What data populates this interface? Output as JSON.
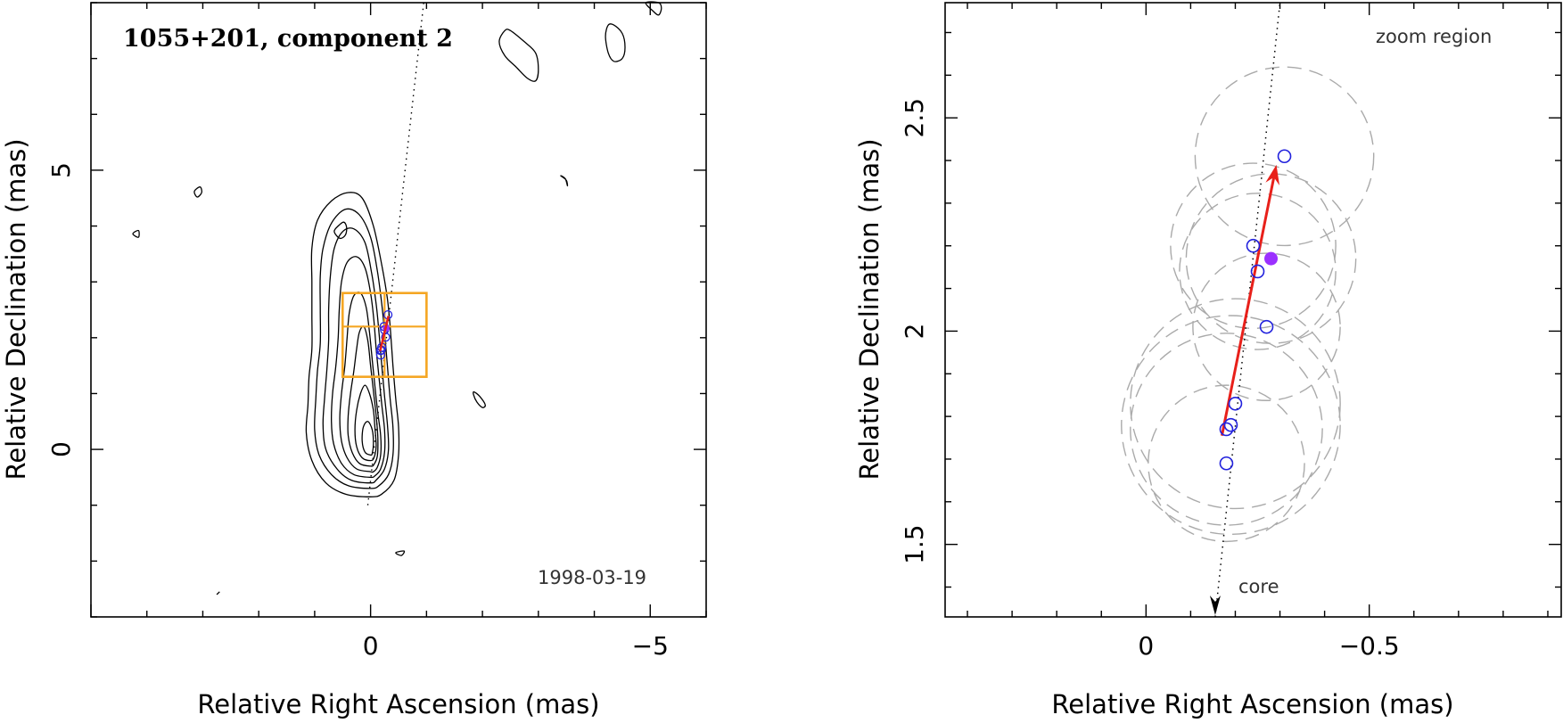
{
  "chart_data": [
    {
      "type": "scatter",
      "title": "1055+201, component 2",
      "annotation": "1998-03-19",
      "xlabel": "Relative Right Ascension (mas)",
      "ylabel": "Relative Declination (mas)",
      "xlim": [
        5,
        -6
      ],
      "ylim": [
        -3,
        8
      ],
      "x_ticks": [
        {
          "value": 0,
          "label": "0"
        },
        {
          "value": -5,
          "label": "−5"
        }
      ],
      "y_ticks": [
        {
          "value": 0,
          "label": "0"
        },
        {
          "value": 5,
          "label": "5"
        }
      ],
      "grid": false,
      "colors": {
        "contour": "#000000",
        "box": "#f5a623",
        "arrow": "#e8201a",
        "points": "#2222dd"
      },
      "contours": [
        [
          [
            0.0,
            -0.85
          ],
          [
            0.45,
            -0.8
          ],
          [
            0.8,
            -0.6
          ],
          [
            1.05,
            -0.2
          ],
          [
            1.15,
            0.3
          ],
          [
            1.12,
            0.8
          ],
          [
            1.1,
            1.3
          ],
          [
            1.05,
            1.8
          ],
          [
            1.05,
            2.4
          ],
          [
            1.05,
            3.0
          ],
          [
            1.05,
            3.6
          ],
          [
            0.95,
            4.1
          ],
          [
            0.7,
            4.45
          ],
          [
            0.4,
            4.6
          ],
          [
            0.15,
            4.5
          ],
          [
            -0.05,
            4.0
          ],
          [
            -0.2,
            3.3
          ],
          [
            -0.3,
            2.7
          ],
          [
            -0.35,
            2.2
          ],
          [
            -0.4,
            1.5
          ],
          [
            -0.45,
            0.9
          ],
          [
            -0.5,
            0.4
          ],
          [
            -0.5,
            -0.1
          ],
          [
            -0.42,
            -0.55
          ],
          [
            -0.2,
            -0.8
          ]
        ],
        [
          [
            0.0,
            -0.7
          ],
          [
            0.4,
            -0.65
          ],
          [
            0.7,
            -0.45
          ],
          [
            0.92,
            -0.1
          ],
          [
            1.0,
            0.35
          ],
          [
            0.98,
            0.9
          ],
          [
            0.95,
            1.4
          ],
          [
            0.9,
            1.9
          ],
          [
            0.9,
            2.5
          ],
          [
            0.9,
            3.1
          ],
          [
            0.85,
            3.6
          ],
          [
            0.7,
            4.05
          ],
          [
            0.45,
            4.3
          ],
          [
            0.2,
            4.2
          ],
          [
            0.0,
            3.8
          ],
          [
            -0.12,
            3.2
          ],
          [
            -0.2,
            2.6
          ],
          [
            -0.25,
            2.1
          ],
          [
            -0.3,
            1.5
          ],
          [
            -0.35,
            0.9
          ],
          [
            -0.4,
            0.4
          ],
          [
            -0.4,
            -0.1
          ],
          [
            -0.32,
            -0.45
          ],
          [
            -0.15,
            -0.65
          ]
        ],
        [
          [
            0.0,
            -0.6
          ],
          [
            0.35,
            -0.55
          ],
          [
            0.6,
            -0.35
          ],
          [
            0.8,
            0.0
          ],
          [
            0.85,
            0.45
          ],
          [
            0.82,
            0.95
          ],
          [
            0.78,
            1.45
          ],
          [
            0.75,
            1.95
          ],
          [
            0.75,
            2.5
          ],
          [
            0.72,
            3.1
          ],
          [
            0.65,
            3.6
          ],
          [
            0.5,
            3.9
          ],
          [
            0.3,
            3.95
          ],
          [
            0.1,
            3.7
          ],
          [
            -0.02,
            3.15
          ],
          [
            -0.1,
            2.6
          ],
          [
            -0.15,
            2.1
          ],
          [
            -0.2,
            1.5
          ],
          [
            -0.25,
            0.95
          ],
          [
            -0.3,
            0.45
          ],
          [
            -0.32,
            0.0
          ],
          [
            -0.25,
            -0.35
          ],
          [
            -0.1,
            -0.55
          ]
        ],
        [
          [
            0.0,
            -0.5
          ],
          [
            0.3,
            -0.45
          ],
          [
            0.52,
            -0.25
          ],
          [
            0.66,
            0.1
          ],
          [
            0.7,
            0.5
          ],
          [
            0.68,
            1.0
          ],
          [
            0.62,
            1.5
          ],
          [
            0.58,
            2.0
          ],
          [
            0.56,
            2.5
          ],
          [
            0.52,
            3.0
          ],
          [
            0.42,
            3.35
          ],
          [
            0.25,
            3.45
          ],
          [
            0.1,
            3.25
          ],
          [
            0.0,
            2.8
          ],
          [
            -0.06,
            2.3
          ],
          [
            -0.1,
            1.8
          ],
          [
            -0.15,
            1.3
          ],
          [
            -0.2,
            0.8
          ],
          [
            -0.25,
            0.35
          ],
          [
            -0.25,
            -0.05
          ],
          [
            -0.18,
            -0.35
          ],
          [
            -0.08,
            -0.47
          ]
        ],
        [
          [
            0.0,
            -0.4
          ],
          [
            0.25,
            -0.35
          ],
          [
            0.42,
            -0.15
          ],
          [
            0.52,
            0.15
          ],
          [
            0.55,
            0.55
          ],
          [
            0.52,
            1.0
          ],
          [
            0.46,
            1.5
          ],
          [
            0.42,
            2.0
          ],
          [
            0.38,
            2.45
          ],
          [
            0.3,
            2.75
          ],
          [
            0.18,
            2.8
          ],
          [
            0.08,
            2.55
          ],
          [
            0.02,
            2.1
          ],
          [
            -0.03,
            1.6
          ],
          [
            -0.08,
            1.1
          ],
          [
            -0.13,
            0.65
          ],
          [
            -0.18,
            0.25
          ],
          [
            -0.18,
            -0.1
          ],
          [
            -0.12,
            -0.32
          ],
          [
            -0.05,
            -0.4
          ]
        ],
        [
          [
            0.0,
            -0.3
          ],
          [
            0.2,
            -0.25
          ],
          [
            0.33,
            -0.05
          ],
          [
            0.4,
            0.25
          ],
          [
            0.4,
            0.6
          ],
          [
            0.36,
            1.0
          ],
          [
            0.3,
            1.4
          ],
          [
            0.25,
            1.8
          ],
          [
            0.2,
            2.1
          ],
          [
            0.12,
            2.2
          ],
          [
            0.05,
            1.95
          ],
          [
            0.0,
            1.5
          ],
          [
            -0.05,
            1.05
          ],
          [
            -0.1,
            0.6
          ],
          [
            -0.13,
            0.2
          ],
          [
            -0.12,
            -0.12
          ],
          [
            -0.06,
            -0.27
          ]
        ],
        [
          [
            0.0,
            -0.2
          ],
          [
            0.15,
            -0.15
          ],
          [
            0.25,
            0.05
          ],
          [
            0.28,
            0.35
          ],
          [
            0.25,
            0.7
          ],
          [
            0.18,
            1.0
          ],
          [
            0.1,
            1.15
          ],
          [
            0.02,
            1.0
          ],
          [
            -0.05,
            0.7
          ],
          [
            -0.08,
            0.35
          ],
          [
            -0.1,
            0.05
          ],
          [
            -0.06,
            -0.15
          ]
        ],
        [
          [
            0.0,
            -0.1
          ],
          [
            0.1,
            -0.05
          ],
          [
            0.15,
            0.15
          ],
          [
            0.13,
            0.4
          ],
          [
            0.05,
            0.5
          ],
          [
            -0.03,
            0.35
          ],
          [
            -0.05,
            0.1
          ],
          [
            -0.03,
            -0.07
          ]
        ],
        [
          [
            -2.5,
            7.5
          ],
          [
            -2.75,
            7.3
          ],
          [
            -2.95,
            7.1
          ],
          [
            -3.0,
            6.8
          ],
          [
            -2.95,
            6.6
          ],
          [
            -2.8,
            6.65
          ],
          [
            -2.6,
            6.85
          ],
          [
            -2.4,
            7.05
          ],
          [
            -2.3,
            7.3
          ],
          [
            -2.4,
            7.5
          ]
        ],
        [
          [
            -4.35,
            7.6
          ],
          [
            -4.5,
            7.45
          ],
          [
            -4.55,
            7.2
          ],
          [
            -4.5,
            7.0
          ],
          [
            -4.35,
            6.95
          ],
          [
            -4.25,
            7.1
          ],
          [
            -4.2,
            7.4
          ],
          [
            -4.25,
            7.6
          ]
        ],
        [
          [
            -4.92,
            8.0
          ],
          [
            -5.05,
            7.85
          ],
          [
            -5.15,
            7.78
          ],
          [
            -5.2,
            7.9
          ],
          [
            -5.15,
            8.0
          ]
        ],
        [
          [
            0.48,
            4.07
          ],
          [
            0.58,
            4.0
          ],
          [
            0.65,
            3.9
          ],
          [
            0.55,
            3.78
          ],
          [
            0.45,
            3.84
          ],
          [
            0.43,
            3.98
          ]
        ],
        [
          [
            -1.85,
            1.03
          ],
          [
            -1.95,
            0.95
          ],
          [
            -2.05,
            0.8
          ],
          [
            -2.0,
            0.75
          ],
          [
            -1.9,
            0.85
          ],
          [
            -1.84,
            0.98
          ]
        ],
        [
          [
            -3.4,
            4.9
          ],
          [
            -3.5,
            4.82
          ],
          [
            -3.52,
            4.72
          ],
          [
            -3.48,
            4.85
          ]
        ],
        [
          [
            3.05,
            4.7
          ],
          [
            3.15,
            4.62
          ],
          [
            3.1,
            4.52
          ],
          [
            3.02,
            4.6
          ]
        ],
        [
          [
            4.15,
            3.92
          ],
          [
            4.25,
            3.86
          ],
          [
            4.15,
            3.8
          ]
        ],
        [
          [
            -0.45,
            -1.85
          ],
          [
            -0.55,
            -1.9
          ],
          [
            -0.6,
            -1.82
          ]
        ],
        [
          [
            2.7,
            -2.55
          ],
          [
            2.75,
            -2.6
          ]
        ]
      ],
      "dotted_line": [
        [
          0.05,
          -1.0
        ],
        [
          -0.95,
          8.0
        ]
      ],
      "box_outer": {
        "x0": 0.5,
        "x1": -1.0,
        "y0": 1.3,
        "y1": 2.8
      },
      "box_mid": {
        "x": -0.25,
        "y": 2.2
      },
      "arrow": {
        "from": [
          -0.17,
          1.76
        ],
        "to": [
          -0.32,
          2.39
        ]
      },
      "points_open": [
        [
          -0.18,
          1.69
        ],
        [
          -0.18,
          1.77
        ],
        [
          -0.19,
          1.78
        ],
        [
          -0.2,
          1.83
        ],
        [
          -0.27,
          2.01
        ],
        [
          -0.24,
          2.2
        ],
        [
          -0.25,
          2.14
        ],
        [
          -0.31,
          2.41
        ]
      ],
      "points_filled": [
        [
          -0.28,
          2.17
        ]
      ]
    },
    {
      "type": "scatter",
      "annotation": "zoom region",
      "core_label": "core",
      "xlabel": "Relative Right Ascension (mas)",
      "ylabel": "Relative Declination (mas)",
      "xlim": [
        0.45,
        -0.93
      ],
      "ylim": [
        1.33,
        2.77
      ],
      "x_ticks": [
        {
          "value": 0,
          "label": "0"
        },
        {
          "value": -0.5,
          "label": "−0.5"
        }
      ],
      "y_ticks": [
        {
          "value": 1.5,
          "label": "1.5"
        },
        {
          "value": 2,
          "label": "2"
        },
        {
          "value": 2.5,
          "label": "2.5"
        }
      ],
      "grid": false,
      "colors": {
        "circles": "#aaaaaa",
        "arrow": "#e8201a",
        "points": "#2222dd",
        "filled": "#9b30ff",
        "dotted": "#000000"
      },
      "circles": [
        {
          "x": -0.31,
          "y": 2.41,
          "r": 0.2
        },
        {
          "x": -0.24,
          "y": 2.2,
          "r": 0.185
        },
        {
          "x": -0.25,
          "y": 2.14,
          "r": 0.175
        },
        {
          "x": -0.28,
          "y": 2.17,
          "r": 0.19
        },
        {
          "x": -0.27,
          "y": 2.01,
          "r": 0.165
        },
        {
          "x": -0.19,
          "y": 1.78,
          "r": 0.245
        },
        {
          "x": -0.2,
          "y": 1.83,
          "r": 0.235
        },
        {
          "x": -0.18,
          "y": 1.77,
          "r": 0.215
        },
        {
          "x": -0.18,
          "y": 1.69,
          "r": 0.175
        }
      ],
      "dotted_line": [
        [
          -0.155,
          1.33
        ],
        [
          -0.3,
          2.77
        ]
      ],
      "core_arrow_tip": [
        -0.155,
        1.33
      ],
      "arrow": {
        "from": [
          -0.17,
          1.755
        ],
        "to": [
          -0.292,
          2.39
        ]
      },
      "points_open": [
        [
          -0.18,
          1.69
        ],
        [
          -0.18,
          1.77
        ],
        [
          -0.19,
          1.78
        ],
        [
          -0.2,
          1.83
        ],
        [
          -0.27,
          2.01
        ],
        [
          -0.24,
          2.2
        ],
        [
          -0.25,
          2.14
        ],
        [
          -0.31,
          2.41
        ]
      ],
      "points_filled": [
        [
          -0.28,
          2.17
        ]
      ]
    }
  ]
}
